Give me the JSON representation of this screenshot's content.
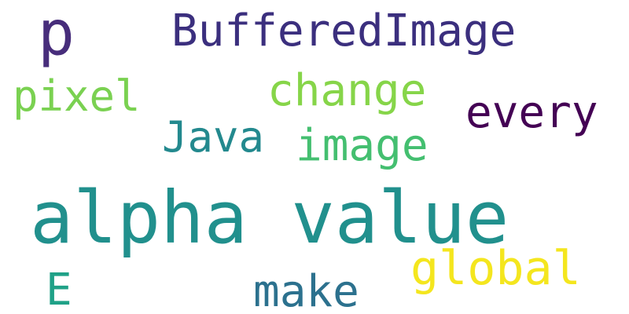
{
  "wordcloud": {
    "words": [
      {
        "text": "alpha value",
        "color": "#21908d"
      },
      {
        "text": "p",
        "color": "#472d7b"
      },
      {
        "text": "BufferedImage",
        "color": "#3b2f7e"
      },
      {
        "text": "change",
        "color": "#86d549"
      },
      {
        "text": "pixel",
        "color": "#7ad151"
      },
      {
        "text": "every",
        "color": "#440154"
      },
      {
        "text": "Java",
        "color": "#23898e"
      },
      {
        "text": "image",
        "color": "#44bf70"
      },
      {
        "text": "global",
        "color": "#f4e61e"
      },
      {
        "text": "make",
        "color": "#2c718e"
      },
      {
        "text": "E",
        "color": "#1fa187"
      }
    ]
  }
}
